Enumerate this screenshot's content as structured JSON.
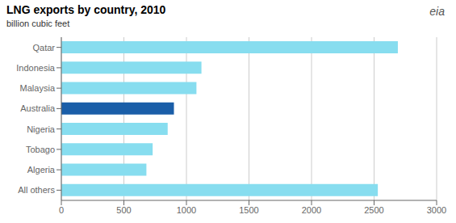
{
  "chart_data": {
    "type": "bar",
    "orientation": "horizontal",
    "title": "LNG exports by country, 2010",
    "subtitle": "billion cubic feet",
    "annotations": [
      "eia"
    ],
    "categories": [
      "Qatar",
      "Indonesia",
      "Malaysia",
      "Australia",
      "Nigeria",
      "Tobago",
      "Algeria",
      "All others"
    ],
    "values": [
      2690,
      1120,
      1080,
      900,
      850,
      730,
      680,
      2530
    ],
    "colors": [
      "#87DDEF",
      "#87DDEF",
      "#87DDEF",
      "#1A5EA8",
      "#87DDEF",
      "#87DDEF",
      "#87DDEF",
      "#87DDEF"
    ],
    "xlim": [
      0,
      3000
    ],
    "xticks": [
      0,
      500,
      1000,
      1500,
      2000,
      2500,
      3000
    ],
    "grid": true
  }
}
